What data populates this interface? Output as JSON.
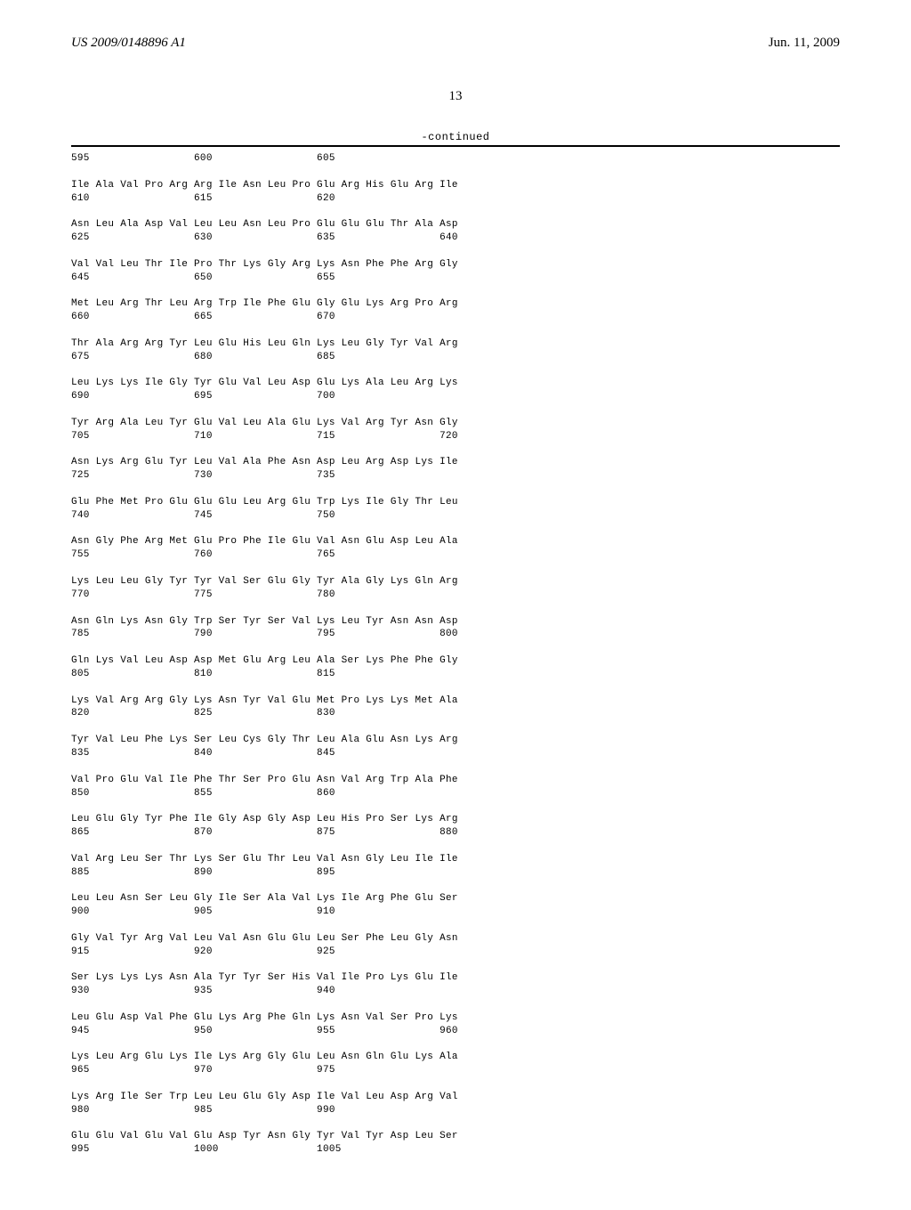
{
  "header": {
    "pub_number": "US 2009/0148896 A1",
    "pub_date": "Jun. 11, 2009"
  },
  "page_number": "13",
  "continued_label": "-continued",
  "sequence_text": "595                 600                 605\n\nIle Ala Val Pro Arg Arg Ile Asn Leu Pro Glu Arg His Glu Arg Ile\n610                 615                 620\n\nAsn Leu Ala Asp Val Leu Leu Asn Leu Pro Glu Glu Glu Thr Ala Asp\n625                 630                 635                 640\n\nVal Val Leu Thr Ile Pro Thr Lys Gly Arg Lys Asn Phe Phe Arg Gly\n645                 650                 655\n\nMet Leu Arg Thr Leu Arg Trp Ile Phe Glu Gly Glu Lys Arg Pro Arg\n660                 665                 670\n\nThr Ala Arg Arg Tyr Leu Glu His Leu Gln Lys Leu Gly Tyr Val Arg\n675                 680                 685\n\nLeu Lys Lys Ile Gly Tyr Glu Val Leu Asp Glu Lys Ala Leu Arg Lys\n690                 695                 700\n\nTyr Arg Ala Leu Tyr Glu Val Leu Ala Glu Lys Val Arg Tyr Asn Gly\n705                 710                 715                 720\n\nAsn Lys Arg Glu Tyr Leu Val Ala Phe Asn Asp Leu Arg Asp Lys Ile\n725                 730                 735\n\nGlu Phe Met Pro Glu Glu Glu Leu Arg Glu Trp Lys Ile Gly Thr Leu\n740                 745                 750\n\nAsn Gly Phe Arg Met Glu Pro Phe Ile Glu Val Asn Glu Asp Leu Ala\n755                 760                 765\n\nLys Leu Leu Gly Tyr Tyr Val Ser Glu Gly Tyr Ala Gly Lys Gln Arg\n770                 775                 780\n\nAsn Gln Lys Asn Gly Trp Ser Tyr Ser Val Lys Leu Tyr Asn Asn Asp\n785                 790                 795                 800\n\nGln Lys Val Leu Asp Asp Met Glu Arg Leu Ala Ser Lys Phe Phe Gly\n805                 810                 815\n\nLys Val Arg Arg Gly Lys Asn Tyr Val Glu Met Pro Lys Lys Met Ala\n820                 825                 830\n\nTyr Val Leu Phe Lys Ser Leu Cys Gly Thr Leu Ala Glu Asn Lys Arg\n835                 840                 845\n\nVal Pro Glu Val Ile Phe Thr Ser Pro Glu Asn Val Arg Trp Ala Phe\n850                 855                 860\n\nLeu Glu Gly Tyr Phe Ile Gly Asp Gly Asp Leu His Pro Ser Lys Arg\n865                 870                 875                 880\n\nVal Arg Leu Ser Thr Lys Ser Glu Thr Leu Val Asn Gly Leu Ile Ile\n885                 890                 895\n\nLeu Leu Asn Ser Leu Gly Ile Ser Ala Val Lys Ile Arg Phe Glu Ser\n900                 905                 910\n\nGly Val Tyr Arg Val Leu Val Asn Glu Glu Leu Ser Phe Leu Gly Asn\n915                 920                 925\n\nSer Lys Lys Lys Asn Ala Tyr Tyr Ser His Val Ile Pro Lys Glu Ile\n930                 935                 940\n\nLeu Glu Asp Val Phe Glu Lys Arg Phe Gln Lys Asn Val Ser Pro Lys\n945                 950                 955                 960\n\nLys Leu Arg Glu Lys Ile Lys Arg Gly Glu Leu Asn Gln Glu Lys Ala\n965                 970                 975\n\nLys Arg Ile Ser Trp Leu Leu Glu Gly Asp Ile Val Leu Asp Arg Val\n980                 985                 990\n\nGlu Glu Val Glu Val Glu Asp Tyr Asn Gly Tyr Val Tyr Asp Leu Ser\n995                 1000                1005"
}
